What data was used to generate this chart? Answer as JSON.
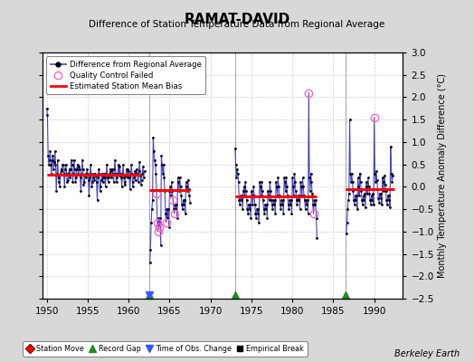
{
  "title": "RAMAT-DAVID",
  "subtitle": "Difference of Station Temperature Data from Regional Average",
  "ylabel_right": "Monthly Temperature Anomaly Difference (°C)",
  "credit": "Berkeley Earth",
  "xlim": [
    1949.5,
    1993.5
  ],
  "ylim": [
    -2.5,
    3.0
  ],
  "yticks": [
    -2.5,
    -2,
    -1.5,
    -1,
    -0.5,
    0,
    0.5,
    1,
    1.5,
    2,
    2.5,
    3
  ],
  "xticks": [
    1950,
    1955,
    1960,
    1965,
    1970,
    1975,
    1980,
    1985,
    1990
  ],
  "background_color": "#d8d8d8",
  "plot_bg_color": "#ffffff",
  "grid_color": "#cccccc",
  "bias_segments": [
    {
      "x_start": 1950.0,
      "x_end": 1961.5,
      "bias": 0.27
    },
    {
      "x_start": 1962.5,
      "x_end": 1967.5,
      "bias": -0.08
    },
    {
      "x_start": 1973.0,
      "x_end": 1983.0,
      "bias": -0.22
    },
    {
      "x_start": 1986.5,
      "x_end": 1992.5,
      "bias": -0.05
    }
  ],
  "record_gaps": [
    1962.5,
    1973.0,
    1986.5
  ],
  "obs_change_x": 1962.5,
  "seg1_x": [
    1950.0,
    1950.083,
    1950.167,
    1950.25,
    1950.333,
    1950.417,
    1950.5,
    1950.583,
    1950.667,
    1950.75,
    1950.833,
    1950.917,
    1951.0,
    1951.083,
    1951.167,
    1951.25,
    1951.333,
    1951.417,
    1951.5,
    1951.583,
    1951.667,
    1951.75,
    1951.833,
    1951.917,
    1952.0,
    1952.083,
    1952.167,
    1952.25,
    1952.333,
    1952.417,
    1952.5,
    1952.583,
    1952.667,
    1952.75,
    1952.833,
    1952.917,
    1953.0,
    1953.083,
    1953.167,
    1953.25,
    1953.333,
    1953.417,
    1953.5,
    1953.583,
    1953.667,
    1953.75,
    1953.833,
    1953.917,
    1954.0,
    1954.083,
    1954.167,
    1954.25,
    1954.333,
    1954.417,
    1954.5,
    1954.583,
    1954.667,
    1954.75,
    1954.833,
    1954.917,
    1955.0,
    1955.083,
    1955.167,
    1955.25,
    1955.333,
    1955.417,
    1955.5,
    1955.583,
    1955.667,
    1955.75,
    1955.833,
    1955.917,
    1956.0,
    1956.083,
    1956.167,
    1956.25,
    1956.333,
    1956.417,
    1956.5,
    1956.583,
    1956.667,
    1956.75,
    1956.833,
    1956.917,
    1957.0,
    1957.083,
    1957.167,
    1957.25,
    1957.333,
    1957.417,
    1957.5,
    1957.583,
    1957.667,
    1957.75,
    1957.833,
    1957.917,
    1958.0,
    1958.083,
    1958.167,
    1958.25,
    1958.333,
    1958.417,
    1958.5,
    1958.583,
    1958.667,
    1958.75,
    1958.833,
    1958.917,
    1959.0,
    1959.083,
    1959.167,
    1959.25,
    1959.333,
    1959.417,
    1959.5,
    1959.583,
    1959.667,
    1959.75,
    1959.833,
    1959.917,
    1960.0,
    1960.083,
    1960.167,
    1960.25,
    1960.333,
    1960.417,
    1960.5,
    1960.583,
    1960.667,
    1960.75,
    1960.833,
    1960.917,
    1961.0,
    1961.083,
    1961.167,
    1961.25,
    1961.333,
    1961.417,
    1961.5,
    1961.583,
    1961.667,
    1961.75,
    1961.833,
    1961.917
  ],
  "seg1_y": [
    1.75,
    1.6,
    0.7,
    0.5,
    0.6,
    0.8,
    0.5,
    0.3,
    0.6,
    0.7,
    0.4,
    0.55,
    0.8,
    0.5,
    -0.1,
    0.3,
    0.6,
    0.2,
    0.1,
    0.0,
    0.3,
    0.4,
    0.35,
    0.5,
    0.5,
    0.3,
    0.0,
    0.4,
    0.5,
    0.3,
    0.1,
    0.15,
    0.3,
    0.4,
    0.2,
    0.4,
    0.6,
    0.5,
    0.1,
    0.3,
    0.6,
    0.4,
    0.1,
    0.2,
    0.4,
    0.5,
    0.3,
    0.45,
    0.4,
    0.2,
    -0.1,
    0.3,
    0.6,
    0.4,
    0.05,
    0.1,
    0.25,
    0.3,
    0.2,
    0.4,
    0.3,
    0.15,
    -0.2,
    0.2,
    0.5,
    0.3,
    0.0,
    0.1,
    0.2,
    0.3,
    0.15,
    0.3,
    0.25,
    0.1,
    -0.3,
    0.2,
    0.4,
    0.3,
    -0.1,
    0.0,
    0.15,
    0.3,
    0.1,
    0.2,
    0.3,
    0.2,
    0.0,
    0.3,
    0.5,
    0.2,
    0.1,
    0.2,
    0.3,
    0.4,
    0.2,
    0.35,
    0.4,
    0.3,
    0.1,
    0.4,
    0.6,
    0.3,
    0.1,
    0.2,
    0.3,
    0.5,
    0.25,
    0.45,
    0.3,
    0.2,
    0.0,
    0.3,
    0.5,
    0.2,
    0.05,
    0.1,
    0.25,
    0.4,
    0.2,
    0.4,
    0.35,
    0.2,
    -0.05,
    0.3,
    0.5,
    0.3,
    0.0,
    0.1,
    0.2,
    0.35,
    0.15,
    0.3,
    0.4,
    0.3,
    0.1,
    0.35,
    0.55,
    0.25,
    0.05,
    0.15,
    0.3,
    0.45,
    0.2,
    0.35
  ],
  "seg1_qc": [
    0,
    0,
    0,
    0,
    0,
    0,
    0,
    0,
    0,
    0,
    0,
    0,
    0,
    0,
    0,
    0,
    0,
    0,
    0,
    0,
    0,
    0,
    0,
    0,
    0,
    0,
    0,
    0,
    0,
    0,
    0,
    0,
    0,
    0,
    0,
    0,
    0,
    0,
    0,
    0,
    0,
    0,
    0,
    0,
    0,
    0,
    0,
    0,
    0,
    0,
    0,
    0,
    0,
    0,
    0,
    0,
    0,
    0,
    0,
    0,
    0,
    0,
    0,
    0,
    0,
    0,
    0,
    0,
    0,
    0,
    0,
    0,
    0,
    0,
    0,
    0,
    0,
    0,
    0,
    0,
    0,
    0,
    0,
    0,
    0,
    0,
    0,
    0,
    0,
    0,
    0,
    0,
    0,
    0,
    0,
    0,
    0,
    0,
    0,
    0,
    0,
    0,
    0,
    0,
    0,
    0,
    0,
    0,
    0,
    0,
    0,
    0,
    0,
    0,
    0,
    0,
    0,
    0,
    0,
    0,
    0,
    0,
    0,
    0,
    0,
    0,
    0,
    0,
    0,
    0,
    0,
    0,
    0,
    0,
    0,
    0,
    0,
    0,
    0,
    0,
    0,
    0,
    0,
    0
  ],
  "seg2_x": [
    1962.583,
    1962.667,
    1962.75,
    1962.833,
    1962.917,
    1963.0,
    1963.083,
    1963.167,
    1963.25,
    1963.333,
    1963.417,
    1963.5,
    1963.583,
    1963.667,
    1963.75,
    1963.833,
    1963.917,
    1964.0,
    1964.083,
    1964.167,
    1964.25,
    1964.333,
    1964.417,
    1964.5,
    1964.583,
    1964.667,
    1964.75,
    1964.833,
    1964.917,
    1965.0,
    1965.083,
    1965.167,
    1965.25,
    1965.333,
    1965.417,
    1965.5,
    1965.583,
    1965.667,
    1965.75,
    1965.833,
    1965.917,
    1966.0,
    1966.083,
    1966.167,
    1966.25,
    1966.333,
    1966.417,
    1966.5,
    1966.583,
    1966.667,
    1966.75,
    1966.833,
    1966.917,
    1967.0,
    1967.083,
    1967.167,
    1967.25,
    1967.333,
    1967.417,
    1967.5
  ],
  "seg2_y": [
    -1.7,
    -1.4,
    -0.8,
    -0.5,
    -0.3,
    1.1,
    0.8,
    0.6,
    0.5,
    0.3,
    -0.15,
    -0.8,
    -1.0,
    -0.7,
    -0.9,
    -0.7,
    -1.3,
    0.7,
    0.5,
    0.3,
    0.5,
    0.2,
    -0.1,
    -0.6,
    -0.8,
    -0.5,
    -0.7,
    -0.5,
    -0.9,
    -0.1,
    0.0,
    -0.2,
    0.1,
    -0.1,
    -0.3,
    -0.5,
    -0.6,
    -0.4,
    -0.5,
    -0.4,
    -0.7,
    0.2,
    0.1,
    -0.1,
    0.2,
    0.0,
    -0.2,
    -0.4,
    -0.5,
    -0.3,
    -0.4,
    -0.3,
    -0.6,
    0.1,
    0.0,
    -0.1,
    0.15,
    -0.05,
    -0.2,
    -0.35
  ],
  "seg2_qc": [
    0,
    0,
    0,
    0,
    0,
    0,
    0,
    0,
    0,
    0,
    1,
    1,
    1,
    0,
    1,
    0,
    0,
    0,
    0,
    0,
    0,
    0,
    0,
    0,
    1,
    0,
    0,
    0,
    0,
    0,
    0,
    0,
    0,
    0,
    1,
    0,
    1,
    0,
    0,
    0,
    0,
    0,
    0,
    0,
    0,
    0,
    0,
    0,
    0,
    0,
    0,
    0,
    0,
    0,
    0,
    0,
    0,
    0,
    0,
    0
  ],
  "seg3_x": [
    1973.0,
    1973.083,
    1973.167,
    1973.25,
    1973.333,
    1973.417,
    1973.5,
    1973.583,
    1973.667,
    1973.75,
    1973.833,
    1973.917,
    1974.0,
    1974.083,
    1974.167,
    1974.25,
    1974.333,
    1974.417,
    1974.5,
    1974.583,
    1974.667,
    1974.75,
    1974.833,
    1974.917,
    1975.0,
    1975.083,
    1975.167,
    1975.25,
    1975.333,
    1975.417,
    1975.5,
    1975.583,
    1975.667,
    1975.75,
    1975.833,
    1975.917,
    1976.0,
    1976.083,
    1976.167,
    1976.25,
    1976.333,
    1976.417,
    1976.5,
    1976.583,
    1976.667,
    1976.75,
    1976.833,
    1976.917,
    1977.0,
    1977.083,
    1977.167,
    1977.25,
    1977.333,
    1977.417,
    1977.5,
    1977.583,
    1977.667,
    1977.75,
    1977.833,
    1977.917,
    1978.0,
    1978.083,
    1978.167,
    1978.25,
    1978.333,
    1978.417,
    1978.5,
    1978.583,
    1978.667,
    1978.75,
    1978.833,
    1978.917,
    1979.0,
    1979.083,
    1979.167,
    1979.25,
    1979.333,
    1979.417,
    1979.5,
    1979.583,
    1979.667,
    1979.75,
    1979.833,
    1979.917,
    1980.0,
    1980.083,
    1980.167,
    1980.25,
    1980.333,
    1980.417,
    1980.5,
    1980.583,
    1980.667,
    1980.75,
    1980.833,
    1980.917,
    1981.0,
    1981.083,
    1981.167,
    1981.25,
    1981.333,
    1981.417,
    1981.5,
    1981.583,
    1981.667,
    1981.75,
    1981.833,
    1981.917,
    1982.0,
    1982.083,
    1982.167,
    1982.25,
    1982.333,
    1982.417,
    1982.5,
    1982.583,
    1982.667,
    1982.75,
    1982.833,
    1982.917,
    1983.0
  ],
  "seg3_y": [
    0.85,
    0.5,
    0.2,
    0.4,
    0.3,
    0.1,
    -0.3,
    -0.4,
    -0.2,
    -0.3,
    -0.2,
    -0.5,
    -0.1,
    0.0,
    -0.2,
    0.1,
    -0.1,
    -0.3,
    -0.5,
    -0.6,
    -0.4,
    -0.5,
    -0.4,
    -0.7,
    -0.1,
    -0.2,
    -0.4,
    0.0,
    -0.2,
    -0.4,
    -0.6,
    -0.7,
    -0.5,
    -0.6,
    -0.5,
    -0.8,
    0.1,
    0.0,
    -0.2,
    0.1,
    -0.1,
    -0.3,
    -0.5,
    -0.6,
    -0.4,
    -0.5,
    -0.4,
    -0.7,
    -0.1,
    -0.2,
    -0.3,
    0.1,
    -0.1,
    -0.3,
    -0.4,
    -0.5,
    -0.3,
    -0.4,
    -0.3,
    -0.6,
    0.1,
    0.0,
    -0.2,
    0.2,
    0.0,
    -0.2,
    -0.4,
    -0.5,
    -0.3,
    -0.4,
    -0.3,
    -0.6,
    0.2,
    0.1,
    -0.1,
    0.2,
    0.0,
    -0.2,
    -0.4,
    -0.5,
    -0.3,
    -0.4,
    -0.3,
    -0.6,
    0.2,
    0.0,
    -0.2,
    0.3,
    0.1,
    -0.1,
    -0.3,
    -0.4,
    -0.2,
    -0.3,
    -0.2,
    -0.5,
    0.1,
    0.0,
    -0.2,
    0.2,
    0.0,
    -0.2,
    -0.3,
    -0.5,
    -0.3,
    -0.4,
    -0.3,
    -0.6,
    2.1,
    0.2,
    -0.1,
    0.3,
    0.1,
    -0.15,
    -0.4,
    -0.6,
    -0.3,
    -0.4,
    -0.3,
    -0.7,
    -1.15
  ],
  "seg3_qc": [
    0,
    0,
    0,
    0,
    0,
    0,
    0,
    0,
    0,
    0,
    0,
    0,
    0,
    0,
    0,
    0,
    0,
    0,
    0,
    0,
    0,
    0,
    0,
    0,
    0,
    0,
    0,
    0,
    0,
    0,
    0,
    0,
    0,
    0,
    0,
    0,
    0,
    0,
    0,
    0,
    0,
    0,
    0,
    0,
    0,
    0,
    0,
    0,
    0,
    0,
    0,
    0,
    0,
    0,
    0,
    0,
    0,
    0,
    0,
    0,
    0,
    0,
    0,
    0,
    0,
    0,
    0,
    0,
    0,
    0,
    0,
    0,
    0,
    0,
    0,
    0,
    0,
    0,
    0,
    0,
    0,
    0,
    0,
    0,
    0,
    0,
    0,
    0,
    0,
    0,
    0,
    0,
    0,
    0,
    0,
    0,
    0,
    0,
    0,
    0,
    0,
    0,
    0,
    0,
    0,
    0,
    0,
    0,
    1,
    0,
    0,
    0,
    0,
    0,
    0,
    1,
    0,
    0,
    0,
    0,
    0
  ],
  "seg4_x": [
    1986.583,
    1986.667,
    1986.75,
    1986.833,
    1986.917,
    1987.0,
    1987.083,
    1987.167,
    1987.25,
    1987.333,
    1987.417,
    1987.5,
    1987.583,
    1987.667,
    1987.75,
    1987.833,
    1987.917,
    1988.0,
    1988.083,
    1988.167,
    1988.25,
    1988.333,
    1988.417,
    1988.5,
    1988.583,
    1988.667,
    1988.75,
    1988.833,
    1988.917,
    1989.0,
    1989.083,
    1989.167,
    1989.25,
    1989.333,
    1989.417,
    1989.5,
    1989.583,
    1989.667,
    1989.75,
    1989.833,
    1989.917,
    1990.0,
    1990.083,
    1990.167,
    1990.25,
    1990.333,
    1990.417,
    1990.5,
    1990.583,
    1990.667,
    1990.75,
    1990.833,
    1990.917,
    1991.0,
    1991.083,
    1991.167,
    1991.25,
    1991.333,
    1991.417,
    1991.5,
    1991.583,
    1991.667,
    1991.75,
    1991.833,
    1991.917,
    1992.0,
    1992.083,
    1992.167,
    1992.25
  ],
  "seg4_y": [
    -1.05,
    -0.8,
    -0.5,
    -0.3,
    -0.15,
    1.5,
    0.3,
    0.1,
    0.3,
    0.1,
    -0.1,
    -0.3,
    -0.4,
    -0.2,
    -0.3,
    -0.2,
    -0.5,
    0.2,
    0.0,
    -0.2,
    0.3,
    0.1,
    -0.1,
    -0.3,
    -0.4,
    -0.2,
    -0.3,
    -0.15,
    -0.45,
    0.1,
    0.0,
    -0.15,
    0.2,
    0.0,
    -0.15,
    -0.3,
    -0.4,
    -0.2,
    -0.3,
    -0.15,
    -0.4,
    1.55,
    0.3,
    0.1,
    0.35,
    0.15,
    -0.05,
    -0.25,
    -0.35,
    -0.15,
    -0.25,
    -0.15,
    -0.4,
    0.2,
    0.1,
    -0.1,
    0.25,
    0.05,
    -0.1,
    -0.3,
    -0.4,
    -0.2,
    -0.3,
    -0.2,
    -0.45,
    0.9,
    0.3,
    0.1,
    0.25
  ],
  "seg4_qc": [
    0,
    0,
    0,
    0,
    0,
    0,
    0,
    0,
    0,
    0,
    0,
    0,
    0,
    0,
    0,
    0,
    0,
    0,
    0,
    0,
    0,
    0,
    0,
    0,
    0,
    0,
    0,
    0,
    0,
    0,
    0,
    0,
    0,
    0,
    0,
    0,
    0,
    0,
    0,
    0,
    0,
    1,
    0,
    0,
    0,
    0,
    0,
    0,
    0,
    0,
    0,
    0,
    0,
    0,
    0,
    0,
    0,
    0,
    0,
    0,
    0,
    0,
    0,
    0,
    0,
    0,
    0,
    0,
    0
  ]
}
